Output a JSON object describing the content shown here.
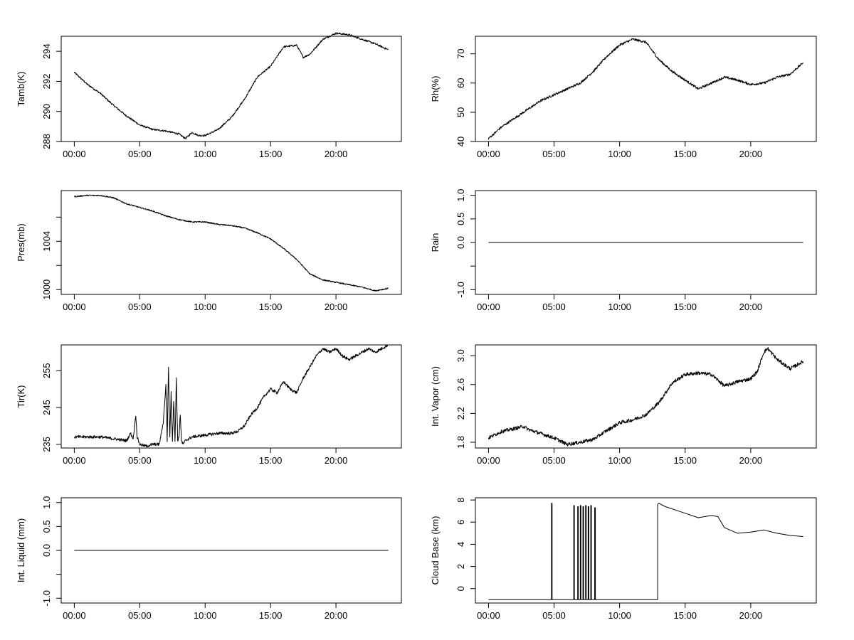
{
  "chart_data": [
    {
      "id": "tamb",
      "type": "line",
      "ylabel": "Tamb(K)",
      "xlabel": "",
      "xlim": [
        -1,
        25
      ],
      "ylim": [
        288,
        295
      ],
      "x_ticks": [
        0,
        5,
        10,
        15,
        20
      ],
      "x_tick_labels": [
        "00:00",
        "05:00",
        "10:00",
        "15:00",
        "20:00"
      ],
      "y_ticks": [
        288,
        290,
        292,
        294
      ],
      "y_tick_labels": [
        "288",
        "290",
        "292",
        "294"
      ],
      "noise": 0.06,
      "x": [
        0,
        1,
        2,
        3,
        4,
        5,
        6,
        7,
        8,
        8.5,
        9,
        9.5,
        10,
        11,
        12,
        13,
        14,
        15,
        16,
        17,
        17.5,
        18,
        19,
        20,
        21,
        22,
        23,
        24
      ],
      "y": [
        292.6,
        291.8,
        291.2,
        290.4,
        289.7,
        289.1,
        288.8,
        288.7,
        288.5,
        288.2,
        288.6,
        288.4,
        288.4,
        288.8,
        289.6,
        290.8,
        292.3,
        293.0,
        294.3,
        294.4,
        293.6,
        293.8,
        294.8,
        295.2,
        295.1,
        294.8,
        294.5,
        294.1
      ]
    },
    {
      "id": "rh",
      "type": "line",
      "ylabel": "Rh(%)",
      "xlabel": "",
      "xlim": [
        -1,
        25
      ],
      "ylim": [
        40,
        76
      ],
      "x_ticks": [
        0,
        5,
        10,
        15,
        20
      ],
      "x_tick_labels": [
        "00:00",
        "05:00",
        "10:00",
        "15:00",
        "20:00"
      ],
      "y_ticks": [
        40,
        50,
        60,
        70
      ],
      "y_tick_labels": [
        "40",
        "50",
        "60",
        "70"
      ],
      "noise": 0.4,
      "x": [
        0,
        1,
        2,
        3,
        4,
        5,
        6,
        7,
        8,
        9,
        10,
        11,
        12,
        13,
        14,
        15,
        16,
        17,
        18,
        19,
        20,
        21,
        22,
        23,
        24
      ],
      "y": [
        41,
        45,
        48,
        51,
        54,
        56,
        58,
        60,
        64,
        69,
        73,
        75,
        74,
        68,
        64,
        61,
        58,
        60,
        62,
        61,
        59.5,
        60,
        62,
        63,
        67
      ]
    },
    {
      "id": "pres",
      "type": "line",
      "ylabel": "Pres(mb)",
      "xlabel": "",
      "xlim": [
        -1,
        25
      ],
      "ylim": [
        999.6,
        1008.2
      ],
      "x_ticks": [
        0,
        5,
        10,
        15,
        20
      ],
      "x_tick_labels": [
        "00:00",
        "05:00",
        "10:00",
        "15:00",
        "20:00"
      ],
      "y_ticks": [
        1000,
        1002,
        1004,
        1006
      ],
      "y_tick_labels": [
        "1000",
        "",
        "1004",
        ""
      ],
      "noise": 0.05,
      "x": [
        0,
        1,
        2,
        3,
        4,
        5,
        6,
        7,
        8,
        9,
        10,
        11,
        12,
        13,
        14,
        15,
        16,
        17,
        18,
        19,
        20,
        21,
        22,
        23,
        24
      ],
      "y": [
        1007.7,
        1007.8,
        1007.8,
        1007.6,
        1007.1,
        1006.8,
        1006.5,
        1006.1,
        1005.8,
        1005.6,
        1005.6,
        1005.4,
        1005.3,
        1005.1,
        1004.7,
        1004.2,
        1003.4,
        1002.5,
        1001.3,
        1000.8,
        1000.6,
        1000.4,
        1000.2,
        999.9,
        1000.1
      ]
    },
    {
      "id": "rain",
      "type": "line",
      "ylabel": "Rain",
      "xlabel": "",
      "xlim": [
        -1,
        25
      ],
      "ylim": [
        -1.1,
        1.1
      ],
      "x_ticks": [
        0,
        5,
        10,
        15,
        20
      ],
      "x_tick_labels": [
        "00:00",
        "05:00",
        "10:00",
        "15:00",
        "20:00"
      ],
      "y_ticks": [
        -1.0,
        -0.5,
        0.0,
        0.5,
        1.0
      ],
      "y_tick_labels": [
        "-1.0",
        "",
        "0.0",
        "0.5",
        "1.0"
      ],
      "noise": 0,
      "x": [
        0,
        24
      ],
      "y": [
        0,
        0
      ]
    },
    {
      "id": "tir",
      "type": "line",
      "ylabel": "Tir(K)",
      "xlabel": "",
      "xlim": [
        -1,
        25
      ],
      "ylim": [
        234,
        262
      ],
      "x_ticks": [
        0,
        5,
        10,
        15,
        20
      ],
      "x_tick_labels": [
        "00:00",
        "05:00",
        "10:00",
        "15:00",
        "20:00"
      ],
      "y_ticks": [
        235,
        245,
        255
      ],
      "y_tick_labels": [
        "235",
        "245",
        "255"
      ],
      "noise": 0.4,
      "x": [
        0,
        1,
        2,
        3,
        4,
        4.3,
        4.5,
        4.7,
        4.8,
        5,
        5.5,
        6,
        6.5,
        6.8,
        7,
        7.1,
        7.2,
        7.3,
        7.4,
        7.5,
        7.6,
        7.7,
        7.8,
        7.9,
        8,
        8.1,
        8.2,
        8.3,
        8.5,
        9,
        10,
        11,
        12,
        12.5,
        13,
        13.5,
        14,
        14.5,
        15,
        15.5,
        16,
        16.5,
        17,
        17.5,
        18,
        18.5,
        19,
        19.5,
        20,
        20.5,
        21,
        21.5,
        22,
        22.5,
        23,
        23.5,
        24
      ],
      "y": [
        237,
        237,
        237,
        236.5,
        236,
        238,
        236.5,
        243,
        237,
        235,
        234.5,
        235,
        235,
        241,
        251,
        236,
        256,
        237,
        249,
        236,
        247,
        236,
        253,
        236,
        237,
        243,
        236,
        235,
        236,
        237,
        237.5,
        238,
        238,
        238.5,
        240,
        243,
        245,
        248,
        250,
        249,
        252,
        250,
        249,
        253,
        256,
        259,
        261,
        260,
        261,
        259,
        258,
        259,
        260,
        261,
        260,
        261,
        262
      ]
    },
    {
      "id": "vapor",
      "type": "line",
      "ylabel": "Int. Vapor (cm)",
      "xlabel": "",
      "xlim": [
        -1,
        25
      ],
      "ylim": [
        1.72,
        3.15
      ],
      "x_ticks": [
        0,
        5,
        10,
        15,
        20
      ],
      "x_tick_labels": [
        "00:00",
        "05:00",
        "10:00",
        "15:00",
        "20:00"
      ],
      "y_ticks": [
        1.8,
        2.2,
        2.6,
        3.0
      ],
      "y_tick_labels": [
        "1.8",
        "2.2",
        "2.6",
        "3.0"
      ],
      "noise": 0.025,
      "x": [
        0,
        1,
        2,
        2.7,
        3,
        4,
        5,
        6,
        7,
        8,
        9,
        10,
        11,
        12,
        13,
        14,
        15,
        16,
        17,
        18,
        19,
        20,
        20.5,
        21,
        21.3,
        22,
        23,
        24
      ],
      "y": [
        1.86,
        1.95,
        1.99,
        2.02,
        1.98,
        1.92,
        1.86,
        1.77,
        1.8,
        1.84,
        1.96,
        2.07,
        2.11,
        2.18,
        2.35,
        2.62,
        2.74,
        2.76,
        2.74,
        2.58,
        2.64,
        2.68,
        2.78,
        3.05,
        3.1,
        2.95,
        2.82,
        2.92
      ]
    },
    {
      "id": "liquid",
      "type": "line",
      "ylabel": "Int. Liquid (mm)",
      "xlabel": "",
      "xlim": [
        -1,
        25
      ],
      "ylim": [
        -1.1,
        1.1
      ],
      "x_ticks": [
        0,
        5,
        10,
        15,
        20
      ],
      "x_tick_labels": [
        "00:00",
        "05:00",
        "10:00",
        "15:00",
        "20:00"
      ],
      "y_ticks": [
        -1.0,
        -0.5,
        0.0,
        0.5,
        1.0
      ],
      "y_tick_labels": [
        "-1.0",
        "",
        "0.0",
        "0.5",
        "1.0"
      ],
      "noise": 0,
      "x": [
        0,
        24
      ],
      "y": [
        0,
        0
      ]
    },
    {
      "id": "cloudbase",
      "type": "line",
      "ylabel": "Cloud Base (km)",
      "xlabel": "",
      "xlim": [
        -1,
        25
      ],
      "ylim": [
        -1.3,
        8.2
      ],
      "x_ticks": [
        0,
        5,
        10,
        15,
        20
      ],
      "x_tick_labels": [
        "00:00",
        "05:00",
        "10:00",
        "15:00",
        "20:00"
      ],
      "y_ticks": [
        0,
        2,
        4,
        6,
        8
      ],
      "y_tick_labels": [
        "0",
        "2",
        "4",
        "6",
        "8"
      ],
      "noise": 0,
      "x": [
        0,
        4.8,
        4.8,
        4.85,
        4.85,
        6.5,
        6.5,
        6.55,
        6.55,
        6.8,
        6.8,
        6.85,
        6.85,
        7.0,
        7.0,
        7.05,
        7.05,
        7.2,
        7.2,
        7.25,
        7.25,
        7.4,
        7.4,
        7.45,
        7.45,
        7.6,
        7.6,
        7.65,
        7.65,
        7.8,
        7.8,
        7.85,
        7.85,
        8.1,
        8.1,
        8.15,
        8.15,
        12.9,
        12.9,
        13.0,
        13.5,
        14.5,
        15,
        16,
        17,
        17.5,
        18,
        19,
        20,
        21,
        22,
        23,
        24
      ],
      "y": [
        -1,
        -1,
        7.7,
        7.7,
        -1,
        -1,
        7.5,
        7.5,
        -1,
        -1,
        7.4,
        7.4,
        -1,
        -1,
        7.5,
        7.5,
        -1,
        -1,
        7.4,
        7.4,
        -1,
        -1,
        7.5,
        7.5,
        -1,
        -1,
        7.4,
        7.4,
        -1,
        -1,
        7.5,
        7.5,
        -1,
        -1,
        7.3,
        7.3,
        -1,
        -1,
        7.6,
        7.7,
        7.4,
        7.0,
        6.8,
        6.4,
        6.6,
        6.5,
        5.5,
        5.0,
        5.1,
        5.3,
        5.0,
        4.8,
        4.7
      ]
    }
  ]
}
